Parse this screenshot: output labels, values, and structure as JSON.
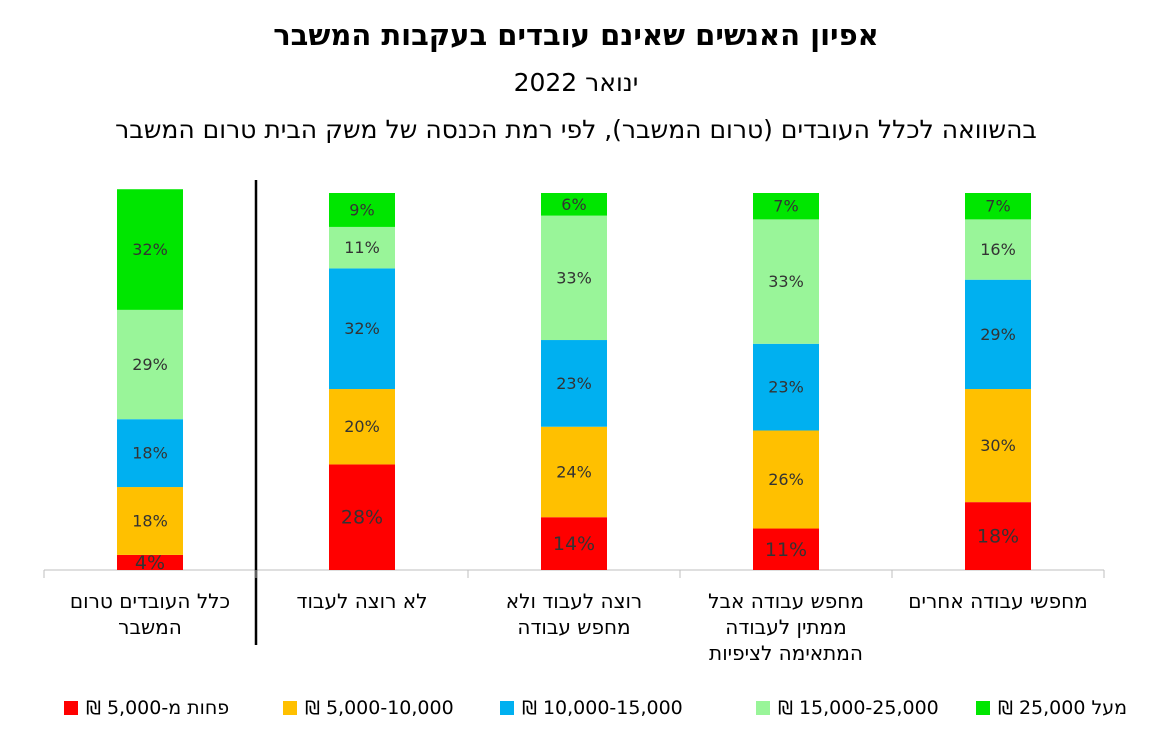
{
  "chart_data": {
    "type": "stacked_bar",
    "title": "אפיון האנשים שאינם עובדים בעקבות המשבר",
    "subtitle": "ינואר 2022",
    "description": "בהשוואה לכלל העובדים (טרום המשבר), לפי רמת הכנסה של משק הבית טרום המשבר",
    "categories": [
      "כלל העובדים טרום המשבר",
      "לא רוצה לעבוד",
      "רוצה לעבוד ולא מחפש עבודה",
      "מחפש עבודה אבל ממתין לעבודה המתאימה לציפיות",
      "מחפשי עבודה אחרים"
    ],
    "ylim": [
      0,
      100
    ],
    "series": [
      {
        "name": "פחות מ-5,000 ₪",
        "color": "#ff0000",
        "values": [
          4,
          28,
          14,
          11,
          18
        ],
        "value_labels": [
          "4%",
          "28%",
          "14%",
          "11%",
          "18%"
        ]
      },
      {
        "name": "5,000-10,000 ₪",
        "color": "#ffc000",
        "values": [
          18,
          20,
          24,
          26,
          30
        ],
        "value_labels": [
          "18%",
          "20%",
          "24%",
          "26%",
          "30%"
        ]
      },
      {
        "name": "10,000-15,000 ₪",
        "color": "#00b0f0",
        "values": [
          18,
          32,
          23,
          23,
          29
        ],
        "value_labels": [
          "18%",
          "32%",
          "23%",
          "23%",
          "29%"
        ]
      },
      {
        "name": "15,000-25,000 ₪",
        "color": "#99f599",
        "values": [
          29,
          11,
          33,
          33,
          16
        ],
        "value_labels": [
          "29%",
          "11%",
          "33%",
          "33%",
          "16%"
        ]
      },
      {
        "name": "מעל 25,000 ₪",
        "color": "#00e600",
        "values": [
          32,
          9,
          6,
          7,
          7
        ],
        "value_labels": [
          "32%",
          "9%",
          "6%",
          "7%",
          "7%"
        ]
      }
    ]
  }
}
